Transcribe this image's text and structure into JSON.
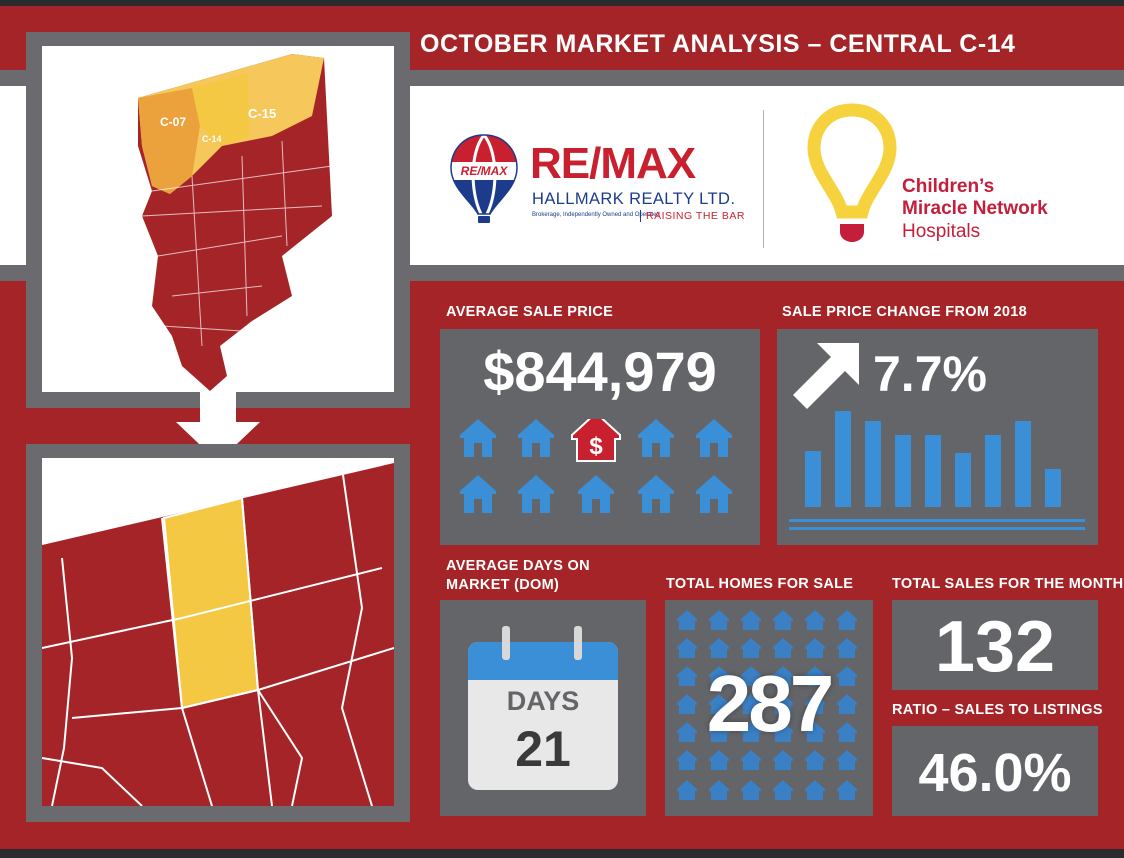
{
  "header": {
    "title": "OCTOBER MARKET ANALYSIS – CENTRAL C-14"
  },
  "map": {
    "district_labels": [
      "C-07",
      "C-14",
      "C-15"
    ]
  },
  "brands": {
    "remax": {
      "balloon_text": "RE/MAX",
      "name": "RE/MAX",
      "company": "HALLMARK REALTY LTD.",
      "fine_print": "Brokerage, Independently Owned and Operated",
      "tagline": "RAISING THE BAR",
      "colors": {
        "red": "#c8202e",
        "blue": "#1c3b8a"
      }
    },
    "cmn": {
      "line1": "Children’s",
      "line2": "Miracle Network",
      "line3": "Hospitals",
      "colors": {
        "yellow": "#f6d23e",
        "red": "#c41e3a"
      }
    }
  },
  "stats": {
    "avg_sale_price": {
      "label": "AVERAGE SALE PRICE",
      "value": "$844,979"
    },
    "price_change": {
      "label": "SALE PRICE CHANGE FROM 2018",
      "value": "7.7%",
      "direction": "up-arrow-icon"
    },
    "dom": {
      "label_line1": "AVERAGE DAYS ON",
      "label_line2": "MARKET (DOM)",
      "calendar_label": "DAYS",
      "value": "21"
    },
    "homes_for_sale": {
      "label": "TOTAL HOMES FOR SALE",
      "value": "287"
    },
    "total_sales": {
      "label": "TOTAL SALES FOR THE MONTH",
      "value": "132"
    },
    "ratio": {
      "label": "RATIO – SALES TO LISTINGS",
      "value": "46.0%"
    }
  },
  "colors": {
    "background_red": "#a52428",
    "panel_grey": "#646569",
    "highlight_yellow": "#f4c842",
    "icon_blue": "#3b8fd6"
  }
}
